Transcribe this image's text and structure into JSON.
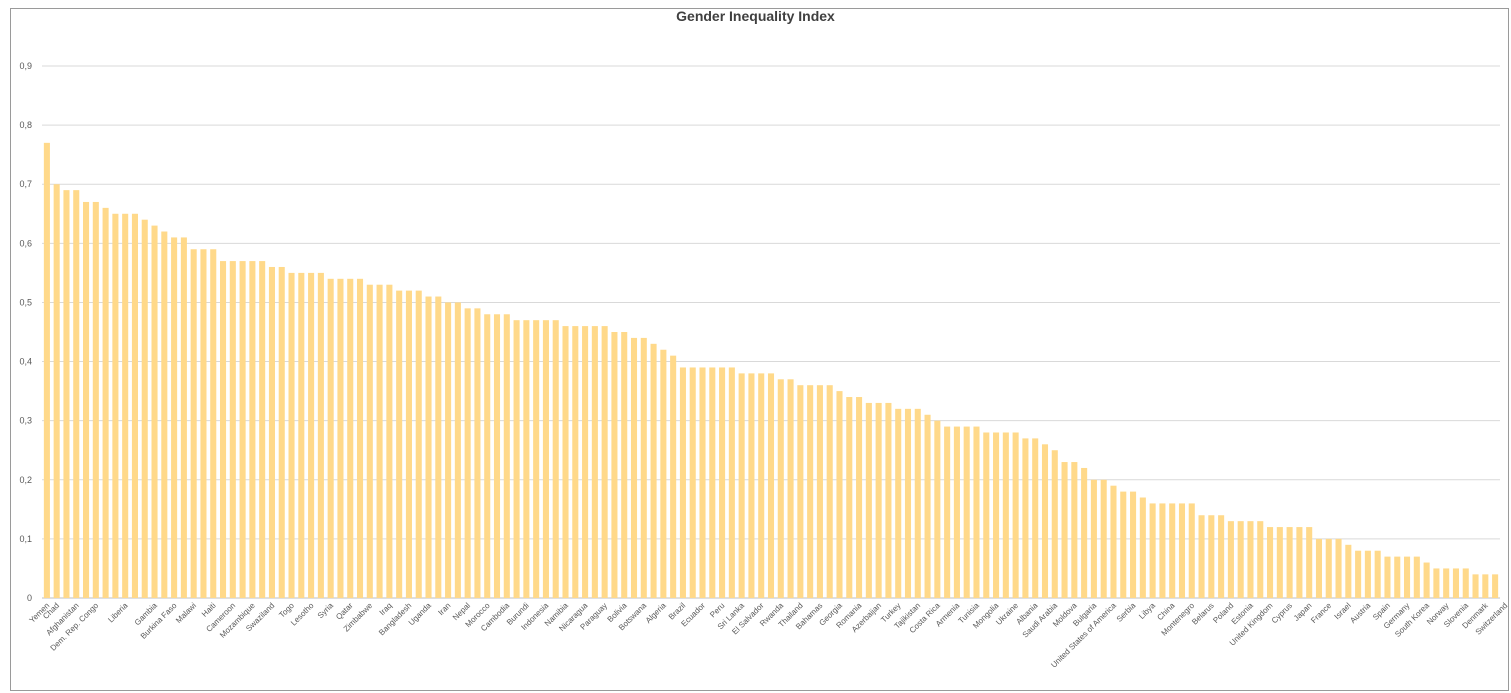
{
  "chart_data": {
    "type": "bar",
    "title": "Gender Inequality Index",
    "xlabel": "",
    "ylabel": "",
    "ylim": [
      0,
      0.9
    ],
    "yticks": [
      "0",
      "0,1",
      "0,2",
      "0,3",
      "0,4",
      "0,5",
      "0,6",
      "0,7",
      "0,8",
      "0,9"
    ],
    "grid": true,
    "bar_color": "#ffd98a",
    "values": [
      0.77,
      0.7,
      0.69,
      0.69,
      0.67,
      0.67,
      0.66,
      0.65,
      0.65,
      0.65,
      0.64,
      0.63,
      0.62,
      0.61,
      0.61,
      0.59,
      0.59,
      0.59,
      0.57,
      0.57,
      0.57,
      0.57,
      0.57,
      0.56,
      0.56,
      0.55,
      0.55,
      0.55,
      0.55,
      0.54,
      0.54,
      0.54,
      0.54,
      0.53,
      0.53,
      0.53,
      0.52,
      0.52,
      0.52,
      0.51,
      0.51,
      0.5,
      0.5,
      0.49,
      0.49,
      0.48,
      0.48,
      0.48,
      0.47,
      0.47,
      0.47,
      0.47,
      0.47,
      0.46,
      0.46,
      0.46,
      0.46,
      0.46,
      0.45,
      0.45,
      0.44,
      0.44,
      0.43,
      0.42,
      0.41,
      0.39,
      0.39,
      0.39,
      0.39,
      0.39,
      0.39,
      0.38,
      0.38,
      0.38,
      0.38,
      0.37,
      0.37,
      0.36,
      0.36,
      0.36,
      0.36,
      0.35,
      0.34,
      0.34,
      0.33,
      0.33,
      0.33,
      0.32,
      0.32,
      0.32,
      0.31,
      0.3,
      0.29,
      0.29,
      0.29,
      0.29,
      0.28,
      0.28,
      0.28,
      0.28,
      0.27,
      0.27,
      0.26,
      0.25,
      0.23,
      0.23,
      0.22,
      0.2,
      0.2,
      0.19,
      0.18,
      0.18,
      0.17,
      0.16,
      0.16,
      0.16,
      0.16,
      0.16,
      0.14,
      0.14,
      0.14,
      0.13,
      0.13,
      0.13,
      0.13,
      0.12,
      0.12,
      0.12,
      0.12,
      0.12,
      0.1,
      0.1,
      0.1,
      0.09,
      0.08,
      0.08,
      0.08,
      0.07,
      0.07,
      0.07,
      0.07,
      0.06,
      0.05,
      0.05,
      0.05,
      0.05,
      0.04,
      0.04,
      0.04
    ],
    "labeled_categories": [
      {
        "index": 0,
        "label": "Yemen"
      },
      {
        "index": 1,
        "label": "Chad"
      },
      {
        "index": 3,
        "label": "Afghanistan"
      },
      {
        "index": 5,
        "label": "Dem. Rep. Congo"
      },
      {
        "index": 8,
        "label": "Liberia"
      },
      {
        "index": 11,
        "label": "Gambia"
      },
      {
        "index": 13,
        "label": "Burkina Faso"
      },
      {
        "index": 15,
        "label": "Malawi"
      },
      {
        "index": 17,
        "label": "Haiti"
      },
      {
        "index": 19,
        "label": "Cameroon"
      },
      {
        "index": 21,
        "label": "Mozambique"
      },
      {
        "index": 23,
        "label": "Swaziland"
      },
      {
        "index": 25,
        "label": "Togo"
      },
      {
        "index": 27,
        "label": "Lesotho"
      },
      {
        "index": 29,
        "label": "Syria"
      },
      {
        "index": 31,
        "label": "Qatar"
      },
      {
        "index": 33,
        "label": "Zimbabwe"
      },
      {
        "index": 35,
        "label": "Iraq"
      },
      {
        "index": 37,
        "label": "Bangladesh"
      },
      {
        "index": 39,
        "label": "Uganda"
      },
      {
        "index": 41,
        "label": "Iran"
      },
      {
        "index": 43,
        "label": "Nepal"
      },
      {
        "index": 45,
        "label": "Morocco"
      },
      {
        "index": 47,
        "label": "Cambodia"
      },
      {
        "index": 49,
        "label": "Burundi"
      },
      {
        "index": 51,
        "label": "Indonesia"
      },
      {
        "index": 53,
        "label": "Namibia"
      },
      {
        "index": 55,
        "label": "Nicaragua"
      },
      {
        "index": 57,
        "label": "Paraguay"
      },
      {
        "index": 59,
        "label": "Bolivia"
      },
      {
        "index": 61,
        "label": "Botswana"
      },
      {
        "index": 63,
        "label": "Algeria"
      },
      {
        "index": 65,
        "label": "Brazil"
      },
      {
        "index": 67,
        "label": "Ecuador"
      },
      {
        "index": 69,
        "label": "Peru"
      },
      {
        "index": 71,
        "label": "Sri Lanka"
      },
      {
        "index": 73,
        "label": "El Salvador"
      },
      {
        "index": 75,
        "label": "Rwanda"
      },
      {
        "index": 77,
        "label": "Thailand"
      },
      {
        "index": 79,
        "label": "Bahamas"
      },
      {
        "index": 81,
        "label": "Georgia"
      },
      {
        "index": 83,
        "label": "Romania"
      },
      {
        "index": 85,
        "label": "Azerbaijan"
      },
      {
        "index": 87,
        "label": "Turkey"
      },
      {
        "index": 89,
        "label": "Tajikistan"
      },
      {
        "index": 91,
        "label": "Costa Rica"
      },
      {
        "index": 93,
        "label": "Armenia"
      },
      {
        "index": 95,
        "label": "Tunisia"
      },
      {
        "index": 97,
        "label": "Mongolia"
      },
      {
        "index": 99,
        "label": "Ukraine"
      },
      {
        "index": 101,
        "label": "Albania"
      },
      {
        "index": 103,
        "label": "Saudi Arabia"
      },
      {
        "index": 105,
        "label": "Moldova"
      },
      {
        "index": 107,
        "label": "Bulgaria"
      },
      {
        "index": 109,
        "label": "United States of America"
      },
      {
        "index": 111,
        "label": "Serbia"
      },
      {
        "index": 113,
        "label": "Libya"
      },
      {
        "index": 115,
        "label": "China"
      },
      {
        "index": 117,
        "label": "Montenegro"
      },
      {
        "index": 119,
        "label": "Belarus"
      },
      {
        "index": 121,
        "label": "Poland"
      },
      {
        "index": 123,
        "label": "Estonia"
      },
      {
        "index": 125,
        "label": "United Kingdom"
      },
      {
        "index": 127,
        "label": "Cyprus"
      },
      {
        "index": 129,
        "label": "Japan"
      },
      {
        "index": 131,
        "label": "France"
      },
      {
        "index": 133,
        "label": "Israel"
      },
      {
        "index": 135,
        "label": "Austria"
      },
      {
        "index": 137,
        "label": "Spain"
      },
      {
        "index": 139,
        "label": "Germany"
      },
      {
        "index": 141,
        "label": "South Korea"
      },
      {
        "index": 143,
        "label": "Norway"
      },
      {
        "index": 145,
        "label": "Slovenia"
      },
      {
        "index": 147,
        "label": "Denmark"
      },
      {
        "index": 149,
        "label": "Switzerland"
      }
    ]
  }
}
